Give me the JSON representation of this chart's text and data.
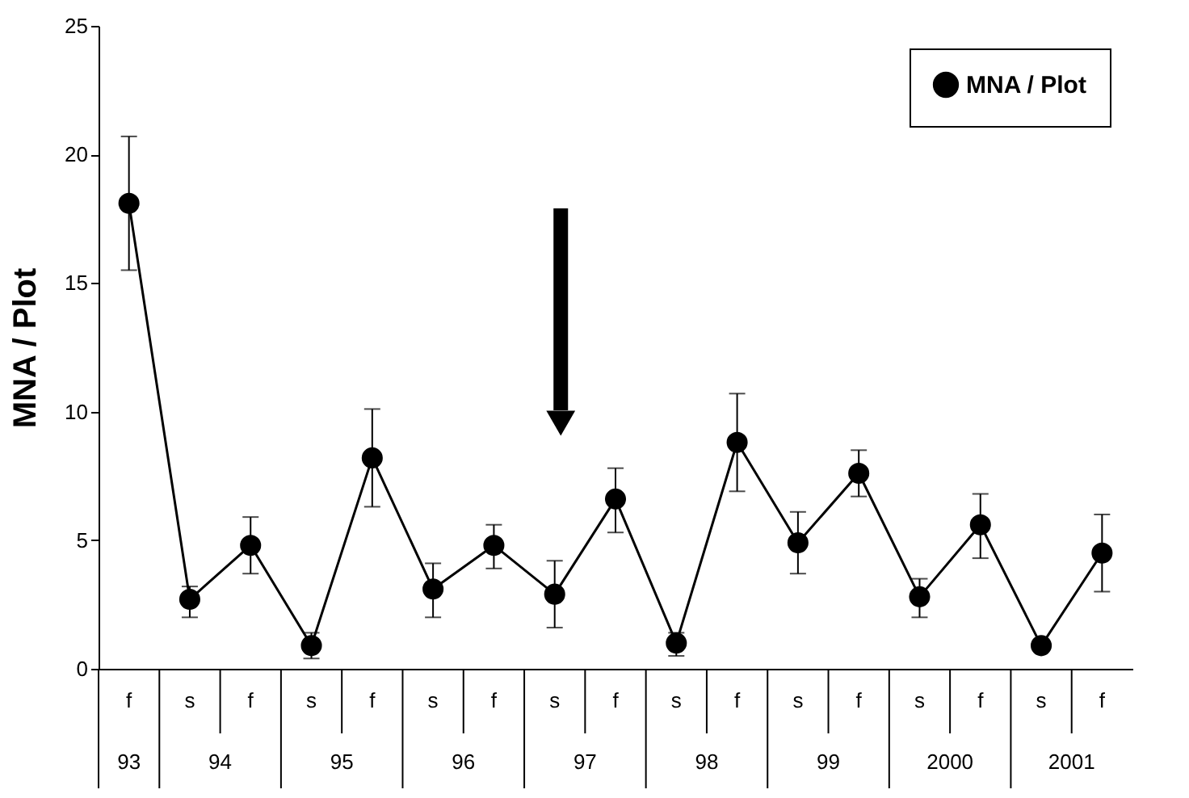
{
  "chart_data": {
    "type": "line",
    "ylabel": "MNA / Plot",
    "categories": [
      "f",
      "s",
      "f",
      "s",
      "f",
      "s",
      "f",
      "s",
      "f",
      "s",
      "f",
      "s",
      "f",
      "s",
      "f",
      "s",
      "f"
    ],
    "series": [
      {
        "name": "MNA / Plot",
        "color": "#000000",
        "values": [
          18.1,
          2.7,
          4.8,
          0.9,
          8.2,
          3.1,
          4.8,
          2.9,
          6.6,
          1.0,
          8.8,
          4.9,
          7.6,
          2.8,
          5.6,
          0.9,
          4.5
        ],
        "errors": [
          [
            15.5,
            20.7
          ],
          [
            2.0,
            3.2
          ],
          [
            3.7,
            5.9
          ],
          [
            0.4,
            1.4
          ],
          [
            6.3,
            10.1
          ],
          [
            2.0,
            4.1
          ],
          [
            3.9,
            5.6
          ],
          [
            1.6,
            4.2
          ],
          [
            5.3,
            7.8
          ],
          [
            0.5,
            1.4
          ],
          [
            6.9,
            10.7
          ],
          [
            3.7,
            6.1
          ],
          [
            6.7,
            8.5
          ],
          [
            2.0,
            3.5
          ],
          [
            4.3,
            6.8
          ],
          null,
          [
            3.0,
            6.0
          ]
        ]
      }
    ],
    "annotations": [
      "93",
      "94",
      "95",
      "96",
      "97",
      "98",
      "99",
      "2000",
      "2001"
    ],
    "ylim": [
      0,
      25
    ],
    "yticks": [
      0,
      5,
      10,
      15,
      20,
      25
    ],
    "grid": false,
    "legend": "top right",
    "marker": "circle",
    "line_style": "solid"
  }
}
